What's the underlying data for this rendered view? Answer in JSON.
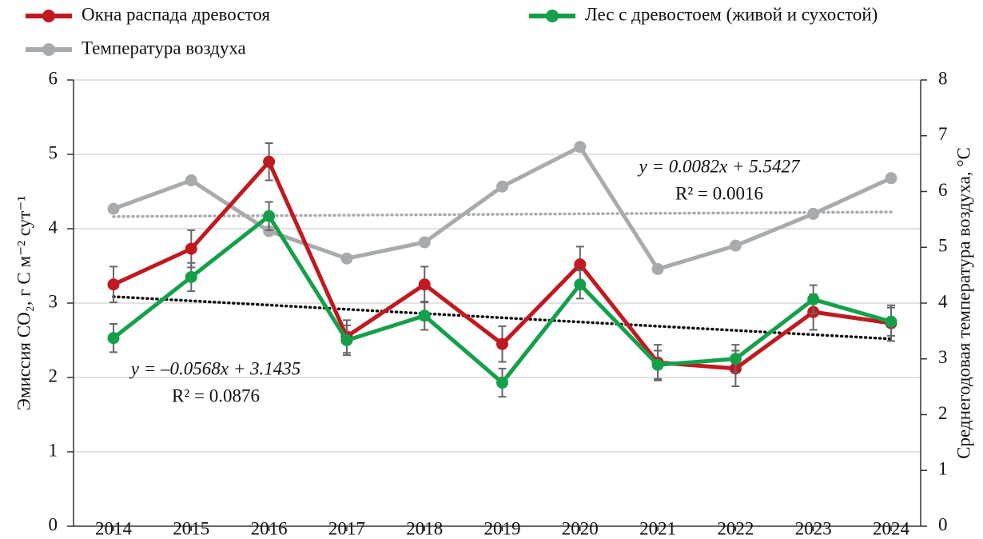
{
  "chart_data": {
    "type": "line",
    "categories": [
      "2014",
      "2015",
      "2016",
      "2017",
      "2018",
      "2019",
      "2020",
      "2021",
      "2022",
      "2023",
      "2024"
    ],
    "ylabel": "Эмиссия CO₂, г С м⁻² сут⁻¹",
    "y2label": "Среднегодовая температура воздуха, °С",
    "ylim": [
      0,
      6
    ],
    "yticks": [
      0,
      1,
      2,
      3,
      4,
      5,
      6
    ],
    "y2lim": [
      0,
      8
    ],
    "y2ticks": [
      0,
      1,
      2,
      3,
      4,
      5,
      6,
      7,
      8
    ],
    "grid": true,
    "series": [
      {
        "name": "Окна распада древостоя",
        "color": "#c0191f",
        "values": [
          3.25,
          3.73,
          4.9,
          2.55,
          3.25,
          2.45,
          3.52,
          2.2,
          2.12,
          2.88,
          2.73
        ],
        "errors": [
          0.24,
          0.25,
          0.25,
          0.22,
          0.24,
          0.24,
          0.24,
          0.24,
          0.24,
          0.24,
          0.24
        ],
        "trend": {
          "equation": "y = –0.0568x + 3.1435",
          "r2": "R² = 0.0876",
          "slope": -0.0568,
          "intercept": 3.1435,
          "color": "#111111"
        }
      },
      {
        "name": "Лес с древостоем (живой и сухостой)",
        "color": "#14a04a",
        "values": [
          2.53,
          3.35,
          4.17,
          2.5,
          2.83,
          1.93,
          3.25,
          2.17,
          2.25,
          3.05,
          2.75
        ],
        "errors": [
          0.19,
          0.19,
          0.19,
          0.2,
          0.19,
          0.19,
          0.19,
          0.19,
          0.19,
          0.19,
          0.19
        ]
      },
      {
        "name": "Температура воздуха",
        "color": "#a8abad",
        "axis": "y2",
        "values": [
          5.69,
          6.2,
          5.29,
          4.8,
          5.09,
          6.09,
          6.8,
          4.61,
          5.03,
          5.6,
          6.24
        ],
        "trend": {
          "equation": "y = 0.0082x + 5.5427",
          "r2": "R² = 0.0016",
          "slope": 0.0082,
          "intercept": 5.5427,
          "color": "#a8abad"
        }
      }
    ]
  }
}
